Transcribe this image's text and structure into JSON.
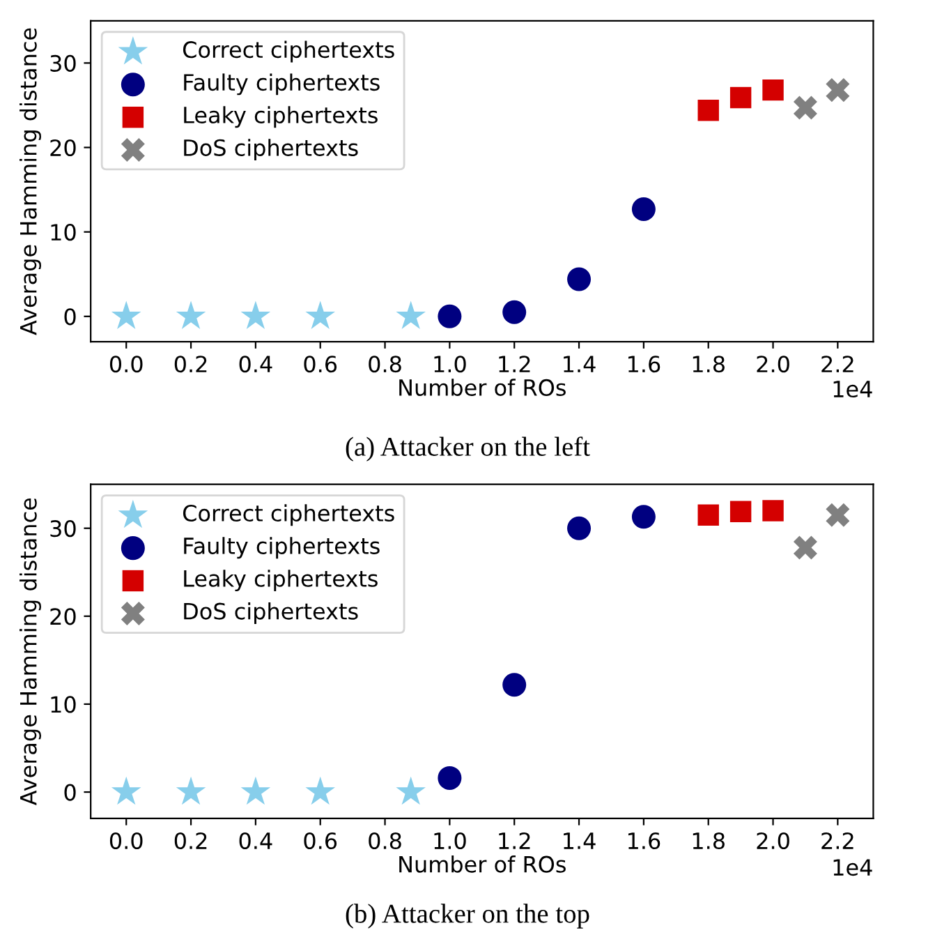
{
  "chart_data": [
    {
      "type": "scatter",
      "xlabel": "Number of ROs",
      "ylabel": "Average Hamming distance",
      "annotations": [
        "1e4",
        "(a) Attacker on the left"
      ],
      "xlim": [
        -0.11,
        2.31
      ],
      "ylim": [
        -3,
        35
      ],
      "xticks": [
        {
          "value": 0,
          "label": "0.0"
        },
        0.2,
        0.4,
        0.6,
        0.8,
        {
          "value": 1,
          "label": "1.0"
        },
        1.2,
        1.4,
        1.6,
        1.8,
        {
          "value": 2,
          "label": "2.0"
        },
        2.2
      ],
      "yticks": [
        0,
        10,
        20,
        30
      ],
      "grid": false,
      "legend": "top left",
      "series": [
        {
          "name": "Correct ciphertexts",
          "color": "#87ceeb",
          "marker": "star",
          "x": [
            0,
            0.2,
            0.4,
            0.6,
            0.88
          ],
          "values": [
            0,
            0,
            0,
            0,
            0
          ]
        },
        {
          "name": "Faulty ciphertexts",
          "color": "#000080",
          "marker": "circle",
          "x": [
            1.0,
            1.2,
            1.4,
            1.6
          ],
          "values": [
            0,
            0.5,
            4.4,
            12.7
          ]
        },
        {
          "name": "Leaky ciphertexts",
          "color": "#d40000",
          "marker": "square",
          "x": [
            1.8,
            1.9,
            2.0
          ],
          "values": [
            24.4,
            25.9,
            26.8
          ]
        },
        {
          "name": "DoS ciphertexts",
          "color": "#808080",
          "marker": "cross",
          "x": [
            2.1,
            2.2
          ],
          "values": [
            24.7,
            26.8
          ]
        }
      ]
    },
    {
      "type": "scatter",
      "xlabel": "Number of ROs",
      "ylabel": "Average Hamming distance",
      "annotations": [
        "1e4",
        "(b) Attacker on the top"
      ],
      "xlim": [
        -0.11,
        2.31
      ],
      "ylim": [
        -3,
        35
      ],
      "xticks": [
        {
          "value": 0,
          "label": "0.0"
        },
        0.2,
        0.4,
        0.6,
        0.8,
        {
          "value": 1,
          "label": "1.0"
        },
        1.2,
        1.4,
        1.6,
        1.8,
        {
          "value": 2,
          "label": "2.0"
        },
        2.2
      ],
      "yticks": [
        0,
        10,
        20,
        30
      ],
      "grid": false,
      "legend": "top left",
      "series": [
        {
          "name": "Correct ciphertexts",
          "color": "#87ceeb",
          "marker": "star",
          "x": [
            0,
            0.2,
            0.4,
            0.6,
            0.88
          ],
          "values": [
            0,
            0,
            0,
            0,
            0
          ]
        },
        {
          "name": "Faulty ciphertexts",
          "color": "#000080",
          "marker": "circle",
          "x": [
            1.0,
            1.2,
            1.4,
            1.6
          ],
          "values": [
            1.6,
            12.2,
            30.0,
            31.3
          ]
        },
        {
          "name": "Leaky ciphertexts",
          "color": "#d40000",
          "marker": "square",
          "x": [
            1.8,
            1.9,
            2.0
          ],
          "values": [
            31.5,
            31.9,
            32.0
          ]
        },
        {
          "name": "DoS ciphertexts",
          "color": "#808080",
          "marker": "cross",
          "x": [
            2.1,
            2.2
          ],
          "values": [
            27.8,
            31.5
          ]
        }
      ]
    }
  ]
}
